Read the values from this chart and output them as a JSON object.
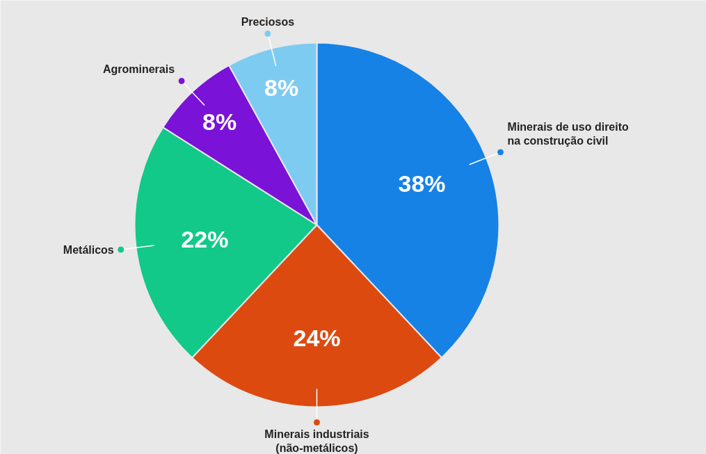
{
  "chart_data": {
    "type": "pie",
    "categories": [
      "Minerais de uso direito\nna construção civil",
      "Minerais industriais\n(não-metálicos)",
      "Metálicos",
      "Agrominerais",
      "Preciosos"
    ],
    "values": [
      38,
      24,
      22,
      8,
      8
    ],
    "colors": [
      "#1682e6",
      "#dc4a10",
      "#12c98a",
      "#7a12d8",
      "#7ecbf2"
    ],
    "value_labels": [
      "38%",
      "24%",
      "22%",
      "8%",
      "8%"
    ]
  }
}
